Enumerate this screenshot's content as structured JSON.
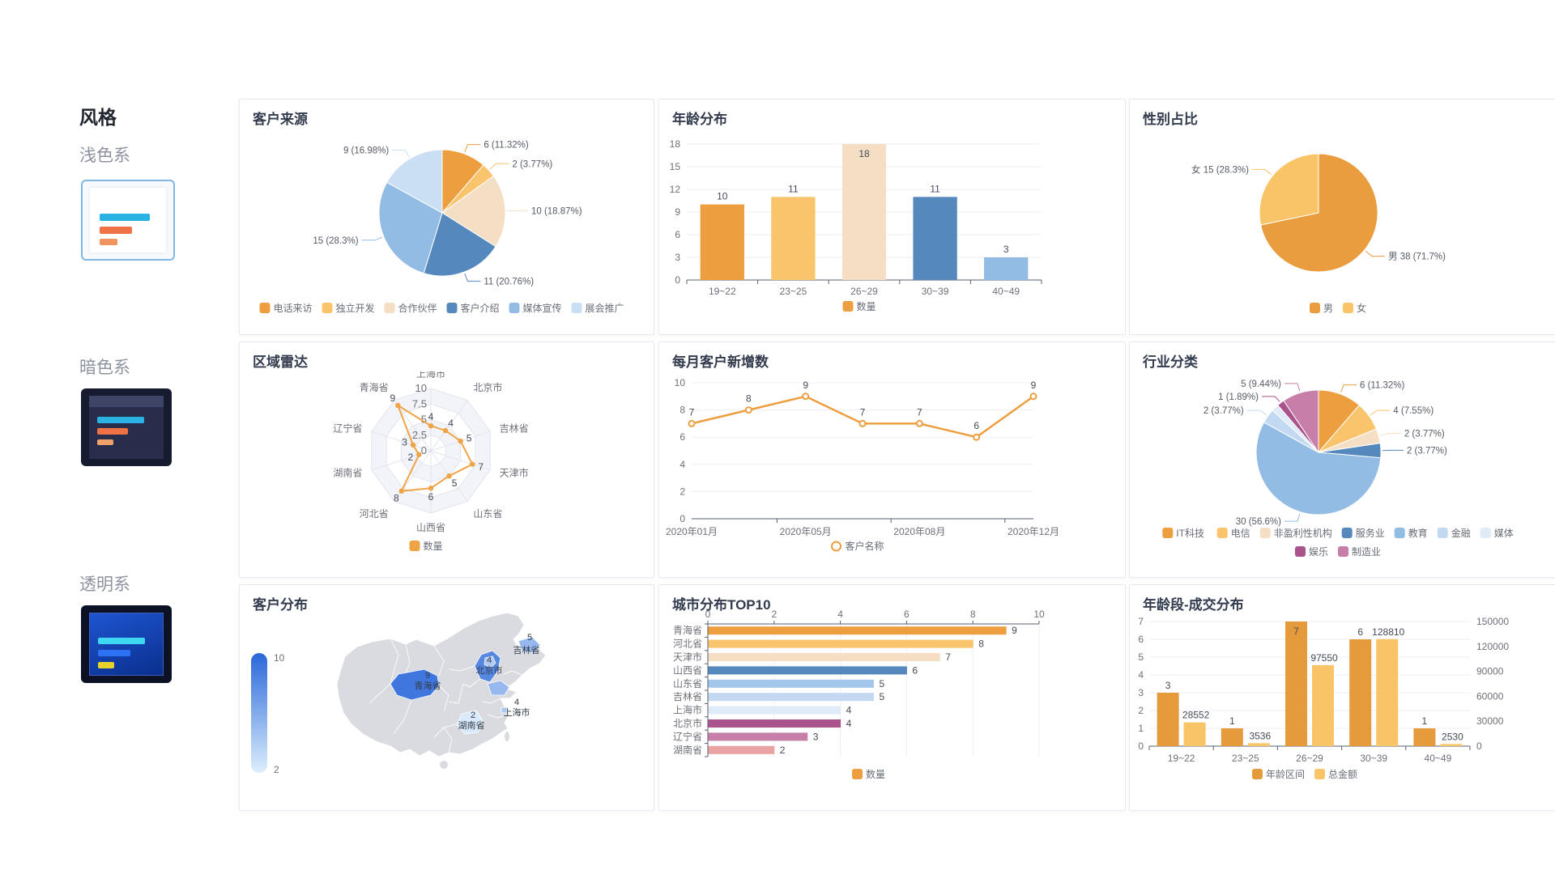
{
  "sidebar": {
    "title": "风格",
    "themes": [
      {
        "label": "浅色系",
        "selected": true
      },
      {
        "label": "暗色系",
        "selected": false
      },
      {
        "label": "透明系",
        "selected": false
      }
    ]
  },
  "chart_data": [
    {
      "type": "pie",
      "title": "客户来源",
      "slices": [
        {
          "name": "电话来访",
          "value": 6,
          "label": "6 (11.32%)",
          "color": "#ED9E3F"
        },
        {
          "name": "独立开发",
          "value": 2,
          "label": "2 (3.77%)",
          "color": "#F9C46B"
        },
        {
          "name": "合作伙伴",
          "value": 10,
          "label": "10 (18.87%)",
          "color": "#F4DFC5"
        },
        {
          "name": "客户介绍",
          "value": 11,
          "label": "11 (20.76%)",
          "color": "#5589BD"
        },
        {
          "name": "媒体宣传",
          "value": 15,
          "label": "15 (28.3%)",
          "color": "#93BCE5"
        },
        {
          "name": "展会推广",
          "value": 9,
          "label": "9 (16.98%)",
          "color": "#CADEF4"
        }
      ]
    },
    {
      "type": "bar",
      "title": "年龄分布",
      "categories": [
        "19~22",
        "23~25",
        "26~29",
        "30~39",
        "40~49"
      ],
      "values": [
        10,
        11,
        18,
        11,
        3
      ],
      "colors": [
        "#ED9E3F",
        "#F9C46B",
        "#F4DFC5",
        "#5589BD",
        "#93BCE5"
      ],
      "ylim": [
        0,
        18
      ],
      "yticks": [
        0,
        3,
        6,
        9,
        12,
        15,
        18
      ],
      "legend": [
        {
          "name": "数量",
          "color": "#ED9E3F"
        }
      ]
    },
    {
      "type": "pie",
      "title": "性别占比",
      "slices": [
        {
          "name": "男",
          "value": 38,
          "label": "男 38 (71.7%)",
          "color": "#EA9D3E"
        },
        {
          "name": "女",
          "value": 15,
          "label": "女 15 (28.3%)",
          "color": "#F9C468"
        }
      ]
    },
    {
      "type": "radar",
      "title": "区域雷达",
      "axes": [
        "上海市",
        "北京市",
        "吉林省",
        "天津市",
        "山东省",
        "山西省",
        "河北省",
        "湖南省",
        "辽宁省",
        "青海省"
      ],
      "values": [
        4,
        4,
        5,
        7,
        5,
        6,
        8,
        2,
        3,
        9
      ],
      "max": 10,
      "ticks": [
        "0",
        "2.5",
        "5",
        "7.5",
        "10"
      ],
      "color": "#EFA344",
      "legend": [
        {
          "name": "数量"
        }
      ]
    },
    {
      "type": "line",
      "title": "每月客户新增数",
      "values": [
        7,
        8,
        9,
        7,
        7,
        6,
        9
      ],
      "x_tick_labels": [
        "2020年01月",
        "2020年05月",
        "2020年08月",
        "2020年12月"
      ],
      "x_tick_indices": [
        0,
        2,
        4,
        6
      ],
      "ylim": [
        0,
        10
      ],
      "yticks": [
        0,
        2,
        4,
        6,
        8,
        10
      ],
      "color": "#ED9E3F",
      "legend": [
        {
          "name": "客户名称"
        }
      ]
    },
    {
      "type": "pie",
      "title": "行业分类",
      "slices": [
        {
          "name": "IT科技",
          "value": 6,
          "label": "6 (11.32%)",
          "color": "#ED9E3F"
        },
        {
          "name": "电信",
          "value": 4,
          "label": "4 (7.55%)",
          "color": "#F9C46B"
        },
        {
          "name": "非盈利性机构",
          "value": 2,
          "label": "2 (3.77%)",
          "color": "#F4DFC5"
        },
        {
          "name": "服务业",
          "value": 2,
          "label": "2 (3.77%)",
          "color": "#5589BD"
        },
        {
          "name": "教育",
          "value": 30,
          "label": "30 (56.6%)",
          "color": "#93BCE5"
        },
        {
          "name": "金融",
          "value": 2,
          "label": "2 (3.77%)",
          "color": "#C3D9F1"
        },
        {
          "name": "媒体",
          "value": 1,
          "label": "",
          "color": "#E0EBF8"
        },
        {
          "name": "娱乐",
          "value": 1,
          "label": "1 (1.89%)",
          "color": "#A9548C"
        },
        {
          "name": "制造业",
          "value": 5,
          "label": "5 (9.44%)",
          "color": "#C77EA8"
        }
      ]
    },
    {
      "type": "map",
      "title": "客户分布",
      "visual_map": {
        "max": 10,
        "min": 2
      },
      "regions": [
        {
          "name": "青海省",
          "value": 9,
          "label": "9"
        },
        {
          "name": "河北省",
          "value": 8,
          "label": ""
        },
        {
          "name": "北京市",
          "value": 4,
          "label": "4"
        },
        {
          "name": "吉林省",
          "value": 5,
          "label": "5"
        },
        {
          "name": "山东省",
          "value": 5,
          "label": ""
        },
        {
          "name": "上海市",
          "value": 4,
          "label": "4"
        },
        {
          "name": "湖南省",
          "value": 2,
          "label": "2"
        }
      ]
    },
    {
      "type": "barh",
      "title": "城市分布TOP10",
      "categories": [
        "青海省",
        "河北省",
        "天津市",
        "山西省",
        "山东省",
        "吉林省",
        "上海市",
        "北京市",
        "辽宁省",
        "湖南省"
      ],
      "values": [
        9,
        8,
        7,
        6,
        5,
        5,
        4,
        4,
        3,
        2
      ],
      "colors": [
        "#ED9E3F",
        "#F9C46B",
        "#F4DFC5",
        "#5589BD",
        "#A3C6EB",
        "#C3D9F1",
        "#E0EBF8",
        "#A9548C",
        "#C77EA8",
        "#E9A3A3"
      ],
      "xticks": [
        0,
        2,
        4,
        6,
        8,
        10
      ],
      "legend": [
        {
          "name": "数量",
          "color": "#ED9E3F"
        }
      ]
    },
    {
      "type": "bar2",
      "title": "年龄段-成交分布",
      "categories": [
        "19~22",
        "23~25",
        "26~29",
        "30~39",
        "40~49"
      ],
      "series": [
        {
          "name": "年龄区间",
          "values": [
            3,
            1,
            7,
            6,
            1
          ],
          "color": "#E59B3C",
          "axis": "left"
        },
        {
          "name": "总金额",
          "values": [
            28552,
            3536,
            97550,
            128810,
            2530
          ],
          "color": "#F9C468",
          "axis": "right"
        }
      ],
      "left_ticks": [
        0,
        1,
        2,
        3,
        4,
        5,
        6,
        7
      ],
      "right_ticks": [
        0,
        30000,
        60000,
        90000,
        120000,
        150000
      ]
    }
  ]
}
